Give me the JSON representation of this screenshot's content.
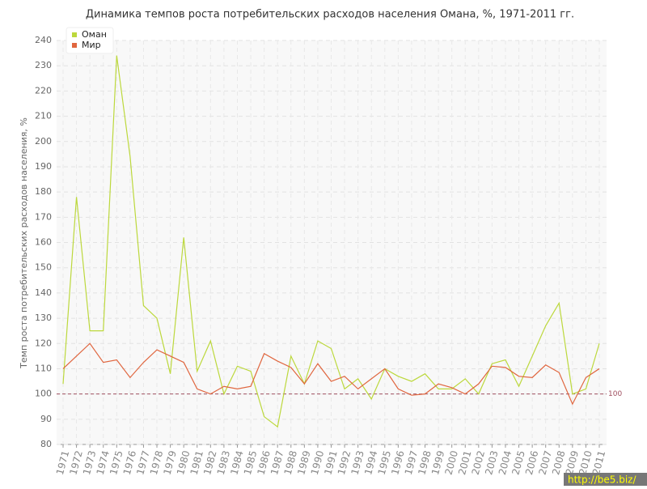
{
  "chart_data": {
    "type": "line",
    "title": "Динамика темпов роста потребительских расходов населения Омана, %, 1971-2011 гг.",
    "y_label": "Темп роста потребительских расходов населения, %",
    "categories": [
      "1971",
      "1972",
      "1973",
      "1974",
      "1975",
      "1976",
      "1977",
      "1978",
      "1979",
      "1980",
      "1981",
      "1982",
      "1983",
      "1984",
      "1985",
      "1986",
      "1987",
      "1988",
      "1989",
      "1990",
      "1991",
      "1992",
      "1993",
      "1994",
      "1995",
      "1996",
      "1997",
      "1998",
      "1999",
      "2000",
      "2001",
      "2002",
      "2003",
      "2004",
      "2005",
      "2006",
      "2007",
      "2008",
      "2009",
      "2010",
      "2011"
    ],
    "series": [
      {
        "name": "Оман",
        "color": "#bcd83c",
        "values": [
          104,
          178,
          125,
          125,
          234,
          194,
          135,
          130,
          108,
          162,
          109,
          121,
          100,
          111,
          109,
          91,
          87,
          115,
          104,
          121,
          118,
          102,
          106,
          98,
          110,
          107,
          105,
          108,
          102,
          102,
          106,
          100,
          112,
          113.5,
          103,
          115,
          127,
          136,
          100,
          102,
          120
        ]
      },
      {
        "name": "Мир",
        "color": "#e0663f",
        "values": [
          110,
          115,
          120,
          112.5,
          113.5,
          106.5,
          112.5,
          117.5,
          115,
          112.5,
          102,
          100,
          103,
          102,
          103,
          116,
          113,
          110.5,
          104,
          112,
          105,
          107,
          102,
          106,
          110,
          102,
          99.5,
          100,
          104,
          102.5,
          100,
          104,
          111,
          110.5,
          107,
          106.5,
          111.5,
          108.5,
          96,
          106.5,
          110
        ]
      }
    ],
    "reference_line": 100,
    "ylim": [
      80,
      240
    ],
    "yticks": [
      80,
      90,
      100,
      110,
      120,
      130,
      140,
      150,
      160,
      170,
      180,
      190,
      200,
      210,
      220,
      230,
      240
    ],
    "grid": true,
    "legend": "top-left",
    "watermark": "http://be5.biz/"
  }
}
